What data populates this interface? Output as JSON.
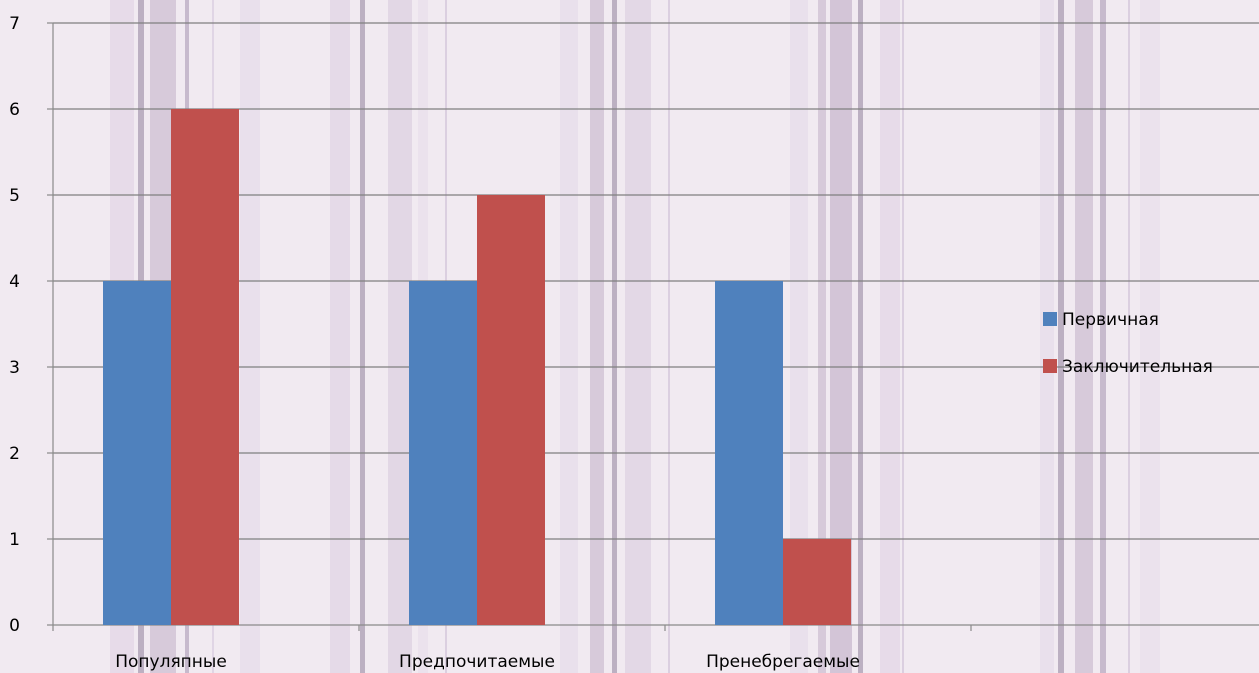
{
  "chart_data": {
    "type": "bar",
    "categories": [
      "Популяпные",
      "Предпочитаемые",
      "Пренебрегаемые",
      ""
    ],
    "series": [
      {
        "name": "Первичная",
        "values": [
          4,
          4,
          4,
          null
        ],
        "color": "#4f81bd"
      },
      {
        "name": "Заключительная",
        "values": [
          6,
          5,
          1,
          null
        ],
        "color": "#c0504d"
      }
    ],
    "yticks": [
      0,
      1,
      2,
      3,
      4,
      5,
      6,
      7
    ],
    "ylim": [
      0,
      7
    ],
    "grid": true,
    "legend_position": "right",
    "title": "",
    "xlabel": "",
    "ylabel": ""
  },
  "colors": {
    "background": "#f1eaf1",
    "gridline": "#7f7f7f",
    "axis": "#8a8a8a"
  }
}
